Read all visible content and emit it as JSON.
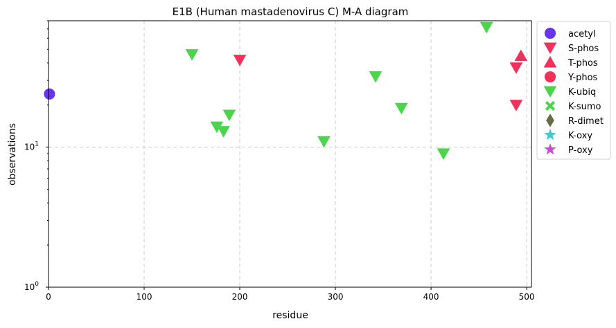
{
  "chart_data": {
    "type": "scatter",
    "title": "E1B (Human mastadenovirus C) M-A diagram",
    "xlabel": "residue",
    "ylabel": "observations",
    "xlim": [
      0,
      505
    ],
    "ylim": [
      1,
      80
    ],
    "yscale": "log",
    "x_ticks": [
      0,
      100,
      200,
      300,
      400,
      500
    ],
    "y_ticks": [
      {
        "value": 1,
        "base": "10",
        "exp": "0"
      },
      {
        "value": 10,
        "base": "10",
        "exp": "1"
      }
    ],
    "grid": true,
    "legend_position": "outside-right",
    "series": [
      {
        "name": "acetyl",
        "color": "#6a35f0",
        "marker": "circle",
        "points": [
          [
            1,
            24
          ]
        ]
      },
      {
        "name": "S-phos",
        "color": "#f0325a",
        "marker": "triangle-down",
        "points": [
          [
            200,
            42
          ],
          [
            489,
            37
          ],
          [
            489,
            20
          ]
        ]
      },
      {
        "name": "T-phos",
        "color": "#f0325a",
        "marker": "triangle-up",
        "points": [
          [
            494,
            45
          ]
        ]
      },
      {
        "name": "Y-phos",
        "color": "#f0325a",
        "marker": "circle",
        "points": []
      },
      {
        "name": "K-ubiq",
        "color": "#4cd44c",
        "marker": "triangle-down",
        "points": [
          [
            150,
            46
          ],
          [
            176,
            14
          ],
          [
            183,
            13
          ],
          [
            189,
            17
          ],
          [
            288,
            11
          ],
          [
            342,
            32
          ],
          [
            369,
            19
          ],
          [
            413,
            9
          ],
          [
            458,
            72
          ]
        ]
      },
      {
        "name": "K-sumo",
        "color": "#4cd44c",
        "marker": "x",
        "points": []
      },
      {
        "name": "R-dimet",
        "color": "#6b6b45",
        "marker": "diamond",
        "points": []
      },
      {
        "name": "K-oxy",
        "color": "#3ec8d8",
        "marker": "star",
        "points": []
      },
      {
        "name": "P-oxy",
        "color": "#c84cd0",
        "marker": "star",
        "points": []
      }
    ]
  }
}
